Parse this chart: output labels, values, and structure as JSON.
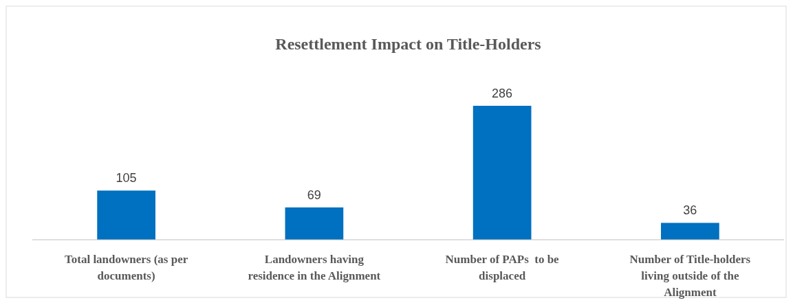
{
  "chart_data": {
    "type": "bar",
    "title": "Resettlement Impact on Title-Holders",
    "categories": [
      "Total landowners (as per documents)",
      "Landowners having residence in the Alignment",
      "Number of PAPs  to be displaced",
      "Number of Title-holders living outside of the Alignment"
    ],
    "values": [
      105,
      69,
      286,
      36
    ],
    "color": "#0070c0",
    "data_labels": true
  }
}
